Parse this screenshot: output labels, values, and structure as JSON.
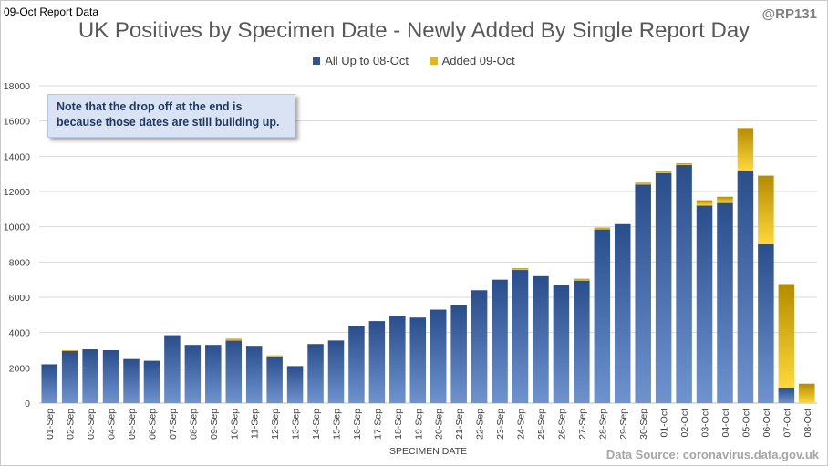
{
  "header": {
    "report_tag": "09-Oct Report Data",
    "handle": "@RP131"
  },
  "note": "Note that the drop off at the end is because those dates are still building up.",
  "source": "Data Source: coronavirus.data.gov.uk",
  "colors": {
    "base_series": "#2f5597",
    "added_series": "#e8b70e",
    "grid": "#d9d9d9"
  },
  "chart_data": {
    "type": "bar",
    "stacked": true,
    "title": "UK Positives by Specimen Date - Newly Added By Single Report Day",
    "xlabel": "SPECIMEN DATE",
    "ylabel": "",
    "ylim": [
      0,
      18000
    ],
    "yticks": [
      0,
      2000,
      4000,
      6000,
      8000,
      10000,
      12000,
      14000,
      16000,
      18000
    ],
    "ytick_labels": [
      "0",
      "2000",
      "4000",
      "6000",
      "8000",
      "10000",
      "12000",
      "14000",
      "16000",
      "18000"
    ],
    "grid": true,
    "legend_position": "top-center",
    "categories": [
      "01-Sep",
      "02-Sep",
      "03-Sep",
      "04-Sep",
      "05-Sep",
      "06-Sep",
      "07-Sep",
      "08-Sep",
      "09-Sep",
      "10-Sep",
      "11-Sep",
      "12-Sep",
      "13-Sep",
      "14-Sep",
      "15-Sep",
      "16-Sep",
      "17-Sep",
      "18-Sep",
      "19-Sep",
      "20-Sep",
      "21-Sep",
      "22-Sep",
      "23-Sep",
      "24-Sep",
      "25-Sep",
      "26-Sep",
      "27-Sep",
      "28-Sep",
      "29-Sep",
      "30-Sep",
      "01-Oct",
      "02-Oct",
      "03-Oct",
      "04-Oct",
      "05-Oct",
      "06-Oct",
      "07-Oct",
      "08-Oct"
    ],
    "series": [
      {
        "name": "All Up to 08-Oct",
        "values": [
          2200,
          2950,
          3050,
          3000,
          2500,
          2400,
          3850,
          3300,
          3300,
          3550,
          3250,
          2650,
          2100,
          3350,
          3550,
          4350,
          4650,
          4950,
          4850,
          5300,
          5550,
          6400,
          7000,
          7550,
          7200,
          6700,
          6950,
          9850,
          10150,
          12400,
          13050,
          13500,
          11200,
          11350,
          13200,
          9000,
          850,
          0
        ]
      },
      {
        "name": "Added 09-Oct",
        "values": [
          0,
          50,
          0,
          0,
          0,
          0,
          0,
          0,
          0,
          100,
          0,
          50,
          0,
          0,
          0,
          0,
          0,
          0,
          0,
          0,
          0,
          0,
          0,
          100,
          0,
          0,
          100,
          100,
          0,
          100,
          100,
          100,
          300,
          350,
          2400,
          3900,
          5900,
          1100
        ]
      }
    ]
  }
}
